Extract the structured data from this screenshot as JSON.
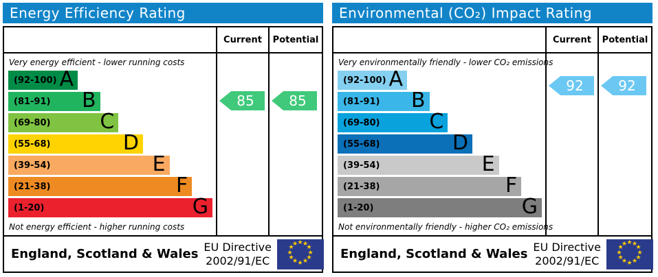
{
  "colors": {
    "header_bg": "#1184c8",
    "eu_flag_bg": "#2b3b8c",
    "eu_star": "#ffcc00"
  },
  "panels": [
    {
      "title": "Energy Efficiency Rating",
      "col_current": "Current",
      "col_potential": "Potential",
      "top_note": "Very energy efficient - lower running costs",
      "bottom_note": "Not energy efficient - higher running costs",
      "bands": [
        {
          "range": "(92-100)",
          "letter": "A",
          "color": "#008c47",
          "width_pct": 34
        },
        {
          "range": "(81-91)",
          "letter": "B",
          "color": "#21b45e",
          "width_pct": 45
        },
        {
          "range": "(69-80)",
          "letter": "C",
          "color": "#80c342",
          "width_pct": 54
        },
        {
          "range": "(55-68)",
          "letter": "D",
          "color": "#fed300",
          "width_pct": 66
        },
        {
          "range": "(39-54)",
          "letter": "E",
          "color": "#f9a960",
          "width_pct": 79
        },
        {
          "range": "(21-38)",
          "letter": "F",
          "color": "#ee8a22",
          "width_pct": 90
        },
        {
          "range": "(1-20)",
          "letter": "G",
          "color": "#eb212e",
          "width_pct": 100
        }
      ],
      "current": {
        "value": "85",
        "arrow_color": "#40c97a"
      },
      "potential": {
        "value": "85",
        "arrow_color": "#40c97a"
      },
      "footer_region": "England, Scotland & Wales",
      "footer_directive_1": "EU Directive",
      "footer_directive_2": "2002/91/EC"
    },
    {
      "title": "Environmental (CO₂) Impact Rating",
      "col_current": "Current",
      "col_potential": "Potential",
      "top_note": "Very environmentally friendly - lower CO₂ emissions",
      "bottom_note": "Not environmentally friendly - higher CO₂ emissions",
      "bands": [
        {
          "range": "(92-100)",
          "letter": "A",
          "color": "#85d0f0",
          "width_pct": 34
        },
        {
          "range": "(81-91)",
          "letter": "B",
          "color": "#3ab7e8",
          "width_pct": 45
        },
        {
          "range": "(69-80)",
          "letter": "C",
          "color": "#0aa2dc",
          "width_pct": 54
        },
        {
          "range": "(55-68)",
          "letter": "D",
          "color": "#0b70b8",
          "width_pct": 66
        },
        {
          "range": "(39-54)",
          "letter": "E",
          "color": "#c9c9c9",
          "width_pct": 79
        },
        {
          "range": "(21-38)",
          "letter": "F",
          "color": "#a6a6a6",
          "width_pct": 90
        },
        {
          "range": "(1-20)",
          "letter": "G",
          "color": "#7e7e7e",
          "width_pct": 100
        }
      ],
      "current": {
        "value": "92",
        "arrow_color": "#6bc8f3"
      },
      "potential": {
        "value": "92",
        "arrow_color": "#6bc8f3"
      },
      "footer_region": "England, Scotland & Wales",
      "footer_directive_1": "EU Directive",
      "footer_directive_2": "2002/91/EC"
    }
  ],
  "chart_data": [
    {
      "type": "bar",
      "title": "Energy Efficiency Rating",
      "bands": [
        {
          "letter": "A",
          "min": 92,
          "max": 100
        },
        {
          "letter": "B",
          "min": 81,
          "max": 91
        },
        {
          "letter": "C",
          "min": 69,
          "max": 80
        },
        {
          "letter": "D",
          "min": 55,
          "max": 68
        },
        {
          "letter": "E",
          "min": 39,
          "max": 54
        },
        {
          "letter": "F",
          "min": 21,
          "max": 38
        },
        {
          "letter": "G",
          "min": 1,
          "max": 20
        }
      ],
      "current": 85,
      "potential": 85,
      "current_band": "B",
      "potential_band": "B",
      "top_label": "Very energy efficient - lower running costs",
      "bottom_label": "Not energy efficient - higher running costs"
    },
    {
      "type": "bar",
      "title": "Environmental (CO₂) Impact Rating",
      "bands": [
        {
          "letter": "A",
          "min": 92,
          "max": 100
        },
        {
          "letter": "B",
          "min": 81,
          "max": 91
        },
        {
          "letter": "C",
          "min": 69,
          "max": 80
        },
        {
          "letter": "D",
          "min": 55,
          "max": 68
        },
        {
          "letter": "E",
          "min": 39,
          "max": 54
        },
        {
          "letter": "F",
          "min": 21,
          "max": 38
        },
        {
          "letter": "G",
          "min": 1,
          "max": 20
        }
      ],
      "current": 92,
      "potential": 92,
      "current_band": "A",
      "potential_band": "A",
      "top_label": "Very environmentally friendly - lower CO₂ emissions",
      "bottom_label": "Not environmentally friendly - higher CO₂ emissions"
    }
  ]
}
